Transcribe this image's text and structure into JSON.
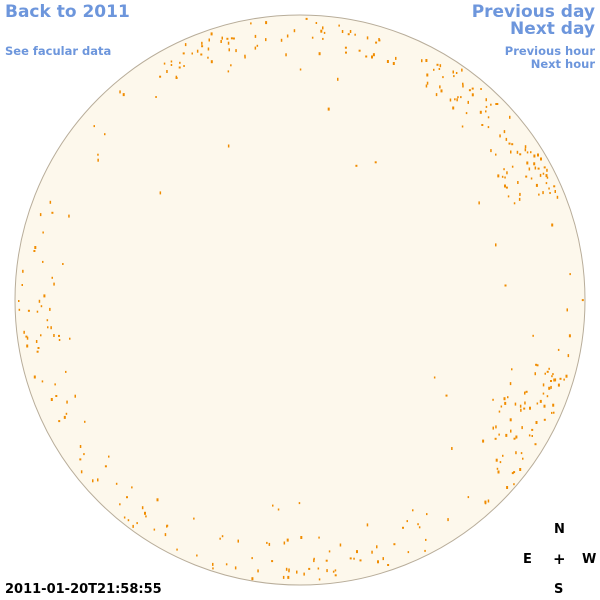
{
  "nav": {
    "back_label": "Back to 2011",
    "facular_label": "See facular data",
    "prev_day_label": "Previous day",
    "next_day_label": "Next day",
    "prev_hour_label": "Previous hour",
    "next_hour_label": "Next hour"
  },
  "timestamp": "2011-01-20T21:58:55",
  "compass": {
    "north": "N",
    "east": "E",
    "center": "+",
    "west": "W",
    "south": "S"
  },
  "colors": {
    "link": "#6d96dc",
    "disk_fill": "#fdf8ec",
    "disk_edge": "#b8ad9a",
    "facula": "#f08c00"
  }
}
